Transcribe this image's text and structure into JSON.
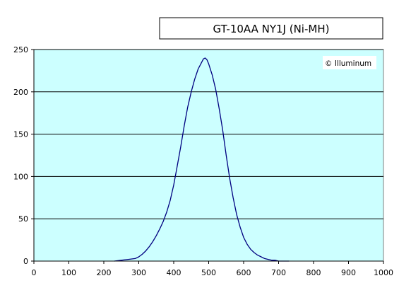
{
  "chart_data": {
    "type": "line",
    "title": "GT-10AA NY1J (Ni-MH)",
    "watermark": "© Illuminum",
    "xlabel": "",
    "ylabel": "",
    "xlim": [
      0,
      1000
    ],
    "ylim": [
      0,
      250
    ],
    "x_ticks": [
      "0",
      "100",
      "200",
      "300",
      "400",
      "500",
      "600",
      "700",
      "800",
      "900",
      "1000"
    ],
    "y_ticks": [
      "0",
      "50",
      "100",
      "150",
      "200",
      "250"
    ],
    "grid": true,
    "plot_background": "#ccffff",
    "line_color": "#000080",
    "series": [
      {
        "x": [
          230,
          250,
          270,
          290,
          300,
          310,
          320,
          330,
          340,
          350,
          360,
          370,
          380,
          390,
          400,
          410,
          420,
          430,
          440,
          450,
          460,
          470,
          480,
          485,
          490,
          495,
          500,
          510,
          520,
          530,
          540,
          550,
          560,
          570,
          580,
          590,
          600,
          610,
          620,
          630,
          640,
          650,
          660,
          670,
          680,
          690,
          700,
          710,
          720,
          730
        ],
        "y": [
          0,
          1,
          2,
          3,
          5,
          8,
          12,
          17,
          23,
          30,
          38,
          47,
          58,
          72,
          90,
          112,
          135,
          160,
          182,
          200,
          215,
          227,
          235,
          239,
          240,
          238,
          233,
          220,
          203,
          180,
          155,
          125,
          98,
          75,
          55,
          40,
          28,
          20,
          14,
          10,
          7,
          5,
          3,
          2,
          1,
          1,
          0,
          0,
          0,
          0
        ]
      }
    ]
  }
}
